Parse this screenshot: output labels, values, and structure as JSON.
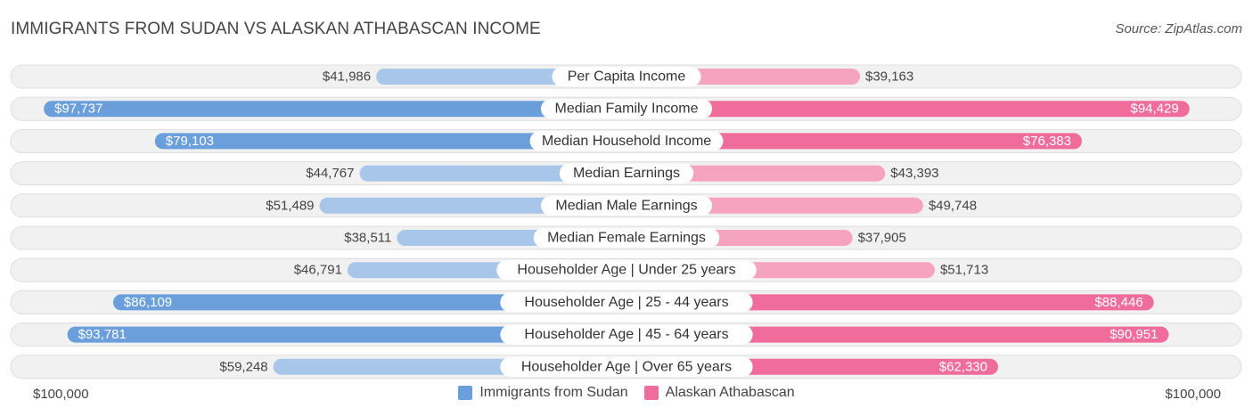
{
  "title": "IMMIGRANTS FROM SUDAN VS ALASKAN ATHABASCAN INCOME",
  "source": "Source: ZipAtlas.com",
  "axis": {
    "left_label": "$100,000",
    "right_label": "$100,000"
  },
  "legend": {
    "left": {
      "label": "Immigrants from Sudan",
      "color": "#6a9fdc"
    },
    "right": {
      "label": "Alaskan Athabascan",
      "color": "#f06c9b"
    }
  },
  "colors": {
    "left_strong": "#6a9fdc",
    "left_light": "#a7c6ea",
    "right_strong": "#f06c9b",
    "right_light": "#f5a3bf",
    "row_bg": "#f1f1f1",
    "row_border": "#dedede"
  },
  "chart_data": {
    "type": "bar",
    "orientation": "horizontal-diverging",
    "title": "IMMIGRANTS FROM SUDAN VS ALASKAN ATHABASCAN INCOME",
    "xlim": [
      0,
      100000
    ],
    "categories": [
      "Per Capita Income",
      "Median Family Income",
      "Median Household Income",
      "Median Earnings",
      "Median Male Earnings",
      "Median Female Earnings",
      "Householder Age | Under 25 years",
      "Householder Age | 25 - 44 years",
      "Householder Age | 45 - 64 years",
      "Householder Age | Over 65 years"
    ],
    "series": [
      {
        "name": "Immigrants from Sudan",
        "values": [
          41986,
          97737,
          79103,
          44767,
          51489,
          38511,
          46791,
          86109,
          93781,
          59248
        ],
        "labels": [
          "$41,986",
          "$97,737",
          "$79,103",
          "$44,767",
          "$51,489",
          "$38,511",
          "$46,791",
          "$86,109",
          "$93,781",
          "$59,248"
        ]
      },
      {
        "name": "Alaskan Athabascan",
        "values": [
          39163,
          94429,
          76383,
          43393,
          49748,
          37905,
          51713,
          88446,
          90951,
          62330
        ],
        "labels": [
          "$39,163",
          "$94,429",
          "$76,383",
          "$43,393",
          "$49,748",
          "$37,905",
          "$51,713",
          "$88,446",
          "$90,951",
          "$62,330"
        ]
      }
    ]
  }
}
